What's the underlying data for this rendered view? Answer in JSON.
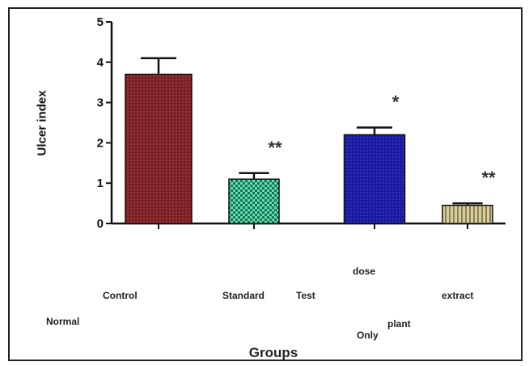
{
  "chart_data": {
    "type": "bar",
    "ylabel": "Ulcer index",
    "xlabel": "Groups",
    "ylim": [
      0,
      5
    ],
    "yticks": [
      "0",
      "1",
      "2",
      "3",
      "4",
      "5"
    ],
    "bars": [
      {
        "value": 3.7,
        "error": 0.4,
        "annotation": "",
        "color": "#7a1f24",
        "pattern": "dots-red"
      },
      {
        "value": 1.1,
        "error": 0.15,
        "annotation": "**",
        "color": "#0b7a56",
        "pattern": "check-green"
      },
      {
        "value": 2.2,
        "error": 0.18,
        "annotation": "*",
        "color": "#1a1aa0",
        "pattern": "dots-blue"
      },
      {
        "value": 0.45,
        "error": 0.05,
        "annotation": "**",
        "color": "#b9ad7a",
        "pattern": "stripes-tan"
      }
    ],
    "category_labels": [
      "Normal",
      "Control",
      "Standard",
      "Test",
      "dose",
      "Only",
      "plant",
      "extract"
    ]
  }
}
